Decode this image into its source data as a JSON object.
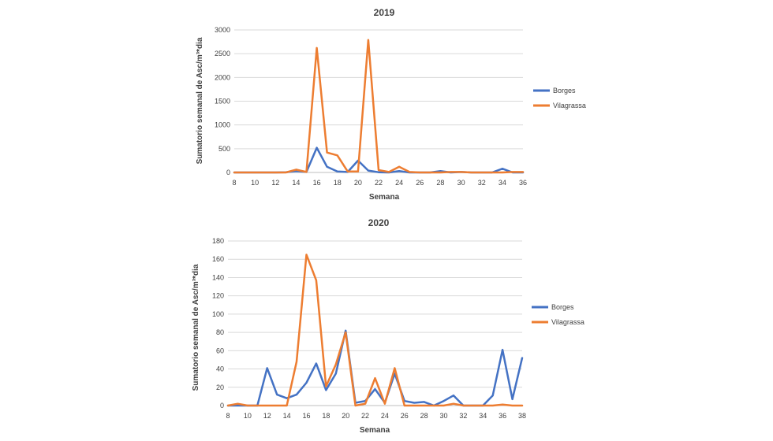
{
  "colors": {
    "borges": "#4472c4",
    "vilagrassa": "#ed7d31"
  },
  "chart_data": [
    {
      "type": "line",
      "title": "2019",
      "xlabel": "Semana",
      "ylabel": "Sumatorio semanal de Asc/m³*dia",
      "xlim": [
        8,
        36
      ],
      "ylim": [
        0,
        3000
      ],
      "xticks": [
        "8",
        "10",
        "12",
        "14",
        "16",
        "18",
        "20",
        "22",
        "24",
        "26",
        "28",
        "30",
        "32",
        "34",
        "36"
      ],
      "yticks": [
        "0",
        "500",
        "1000",
        "1500",
        "2000",
        "2500",
        "3000"
      ],
      "grid": true,
      "legend": "right",
      "x": [
        8,
        9,
        10,
        11,
        12,
        13,
        14,
        15,
        16,
        17,
        18,
        19,
        20,
        21,
        22,
        23,
        24,
        25,
        26,
        27,
        28,
        29,
        30,
        31,
        32,
        33,
        34,
        35,
        36
      ],
      "series": [
        {
          "name": "Borges",
          "color": "#4472c4",
          "values": [
            0,
            0,
            0,
            0,
            0,
            5,
            30,
            10,
            520,
            120,
            20,
            10,
            250,
            40,
            5,
            0,
            30,
            0,
            0,
            0,
            30,
            0,
            10,
            0,
            0,
            0,
            80,
            0,
            0
          ]
        },
        {
          "name": "Vilagrassa",
          "color": "#ed7d31",
          "values": [
            0,
            0,
            0,
            0,
            0,
            0,
            60,
            10,
            2620,
            420,
            360,
            20,
            20,
            2790,
            50,
            10,
            120,
            10,
            0,
            0,
            0,
            10,
            10,
            0,
            0,
            0,
            0,
            10,
            10
          ]
        }
      ]
    },
    {
      "type": "line",
      "title": "2020",
      "xlabel": "Semana",
      "ylabel": "Sumatorio semanal de Asc/m³*dia",
      "xlim": [
        8,
        38
      ],
      "ylim": [
        0,
        180
      ],
      "xticks": [
        "8",
        "10",
        "12",
        "14",
        "16",
        "18",
        "20",
        "22",
        "24",
        "26",
        "28",
        "30",
        "32",
        "34",
        "36",
        "38"
      ],
      "yticks": [
        "0",
        "20",
        "40",
        "60",
        "80",
        "100",
        "120",
        "140",
        "160",
        "180"
      ],
      "grid": true,
      "legend": "right",
      "x": [
        8,
        9,
        10,
        11,
        12,
        13,
        14,
        15,
        16,
        17,
        18,
        19,
        20,
        21,
        22,
        23,
        24,
        25,
        26,
        27,
        28,
        29,
        30,
        31,
        32,
        33,
        34,
        35,
        36,
        37,
        38
      ],
      "series": [
        {
          "name": "Borges",
          "color": "#4472c4",
          "values": [
            0,
            0,
            0,
            0,
            41,
            12,
            8,
            12,
            25,
            46,
            17,
            35,
            82,
            3,
            5,
            18,
            3,
            35,
            5,
            3,
            4,
            0,
            5,
            11,
            0,
            0,
            0,
            11,
            61,
            7,
            52
          ]
        },
        {
          "name": "Vilagrassa",
          "color": "#ed7d31",
          "values": [
            0,
            2,
            0,
            0,
            0,
            0,
            0,
            48,
            165,
            137,
            21,
            45,
            80,
            0,
            2,
            30,
            2,
            41,
            0,
            0,
            0,
            0,
            0,
            2,
            0,
            0,
            0,
            0,
            1,
            0,
            0
          ]
        }
      ]
    }
  ]
}
